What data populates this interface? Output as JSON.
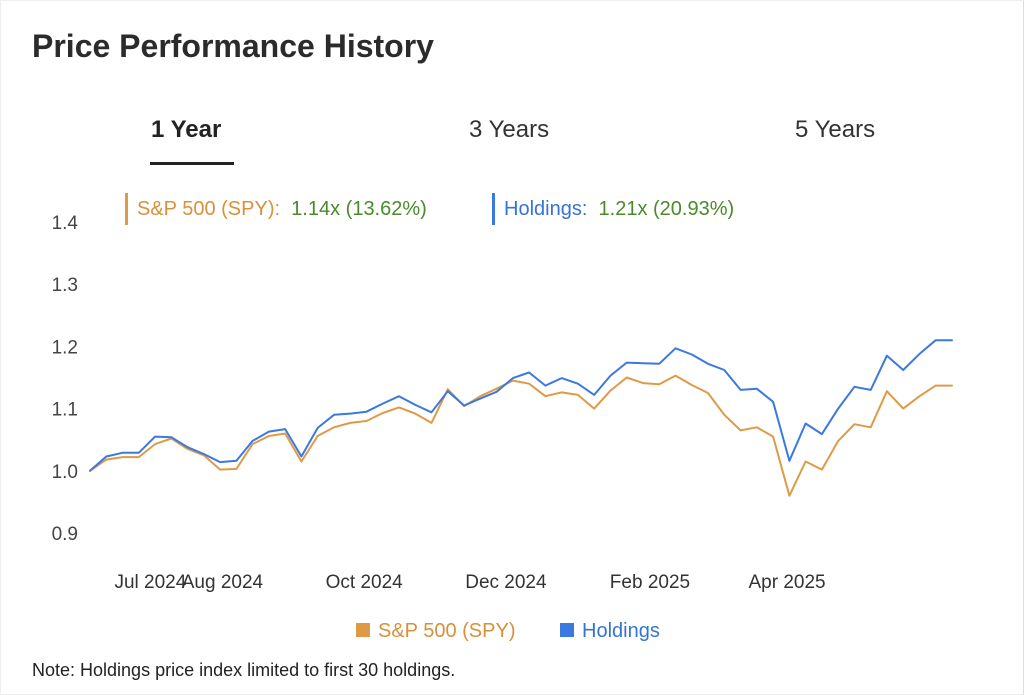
{
  "page": {
    "title": "Price Performance History",
    "note": "Note: Holdings price index limited to first 30 holdings."
  },
  "tabs": [
    {
      "label": "1 Year",
      "active": true
    },
    {
      "label": "3 Years",
      "active": false
    },
    {
      "label": "5 Years",
      "active": false
    }
  ],
  "stats": {
    "spy": {
      "label": "S&P 500 (SPY):",
      "value": "1.14x (13.62%)"
    },
    "holdings": {
      "label": "Holdings:",
      "value": "1.21x (20.93%)"
    }
  },
  "legend": {
    "spy": "S&P 500 (SPY)",
    "holdings": "Holdings"
  },
  "colors": {
    "spy": "#df9a48",
    "holdings": "#3b78e0",
    "value_green": "#4a8a2a"
  },
  "chart_data": {
    "type": "line",
    "title": "",
    "xlabel": "",
    "ylabel": "",
    "ylim": [
      0.9,
      1.4
    ],
    "yticks": [
      "0.9",
      "1.0",
      "1.1",
      "1.2",
      "1.3",
      "1.4"
    ],
    "xticks": [
      "Jul 2024",
      "Aug 2024",
      "Oct 2024",
      "Dec 2024",
      "Feb 2025",
      "Apr 2025"
    ],
    "x": [
      "2024-06-05",
      "2024-06-12",
      "2024-06-19",
      "2024-06-26",
      "2024-07-03",
      "2024-07-10",
      "2024-07-17",
      "2024-07-24",
      "2024-07-31",
      "2024-08-07",
      "2024-08-14",
      "2024-08-21",
      "2024-08-28",
      "2024-09-04",
      "2024-09-11",
      "2024-09-18",
      "2024-09-25",
      "2024-10-02",
      "2024-10-09",
      "2024-10-16",
      "2024-10-23",
      "2024-10-30",
      "2024-11-06",
      "2024-11-13",
      "2024-11-20",
      "2024-11-27",
      "2024-12-04",
      "2024-12-11",
      "2024-12-18",
      "2024-12-25",
      "2025-01-01",
      "2025-01-08",
      "2025-01-15",
      "2025-01-22",
      "2025-01-29",
      "2025-02-05",
      "2025-02-12",
      "2025-02-19",
      "2025-02-26",
      "2025-03-05",
      "2025-03-12",
      "2025-03-19",
      "2025-03-26",
      "2025-04-02",
      "2025-04-09",
      "2025-04-16",
      "2025-04-23",
      "2025-04-30",
      "2025-05-07",
      "2025-05-14",
      "2025-05-21",
      "2025-05-28",
      "2025-06-04",
      "2025-06-11"
    ],
    "series": [
      {
        "name": "S&P 500 (SPY)",
        "values": [
          1.0,
          1.018,
          1.022,
          1.022,
          1.043,
          1.052,
          1.035,
          1.025,
          1.002,
          1.003,
          1.043,
          1.056,
          1.06,
          1.015,
          1.056,
          1.07,
          1.077,
          1.08,
          1.093,
          1.102,
          1.092,
          1.077,
          1.131,
          1.104,
          1.12,
          1.132,
          1.145,
          1.14,
          1.12,
          1.126,
          1.122,
          1.1,
          1.129,
          1.15,
          1.141,
          1.139,
          1.153,
          1.138,
          1.125,
          1.09,
          1.065,
          1.07,
          1.055,
          0.96,
          1.015,
          1.002,
          1.048,
          1.075,
          1.07,
          1.128,
          1.1,
          1.12,
          1.137,
          1.137
        ]
      },
      {
        "name": "Holdings",
        "values": [
          1.0,
          1.023,
          1.029,
          1.029,
          1.055,
          1.054,
          1.038,
          1.027,
          1.014,
          1.016,
          1.048,
          1.063,
          1.067,
          1.023,
          1.069,
          1.09,
          1.092,
          1.095,
          1.108,
          1.12,
          1.106,
          1.094,
          1.128,
          1.105,
          1.116,
          1.127,
          1.149,
          1.158,
          1.137,
          1.149,
          1.14,
          1.122,
          1.153,
          1.174,
          1.173,
          1.172,
          1.197,
          1.187,
          1.172,
          1.162,
          1.13,
          1.132,
          1.111,
          1.016,
          1.076,
          1.059,
          1.1,
          1.135,
          1.13,
          1.185,
          1.162,
          1.188,
          1.21,
          1.21
        ]
      }
    ],
    "grid": false,
    "legend_position": "bottom-center"
  }
}
